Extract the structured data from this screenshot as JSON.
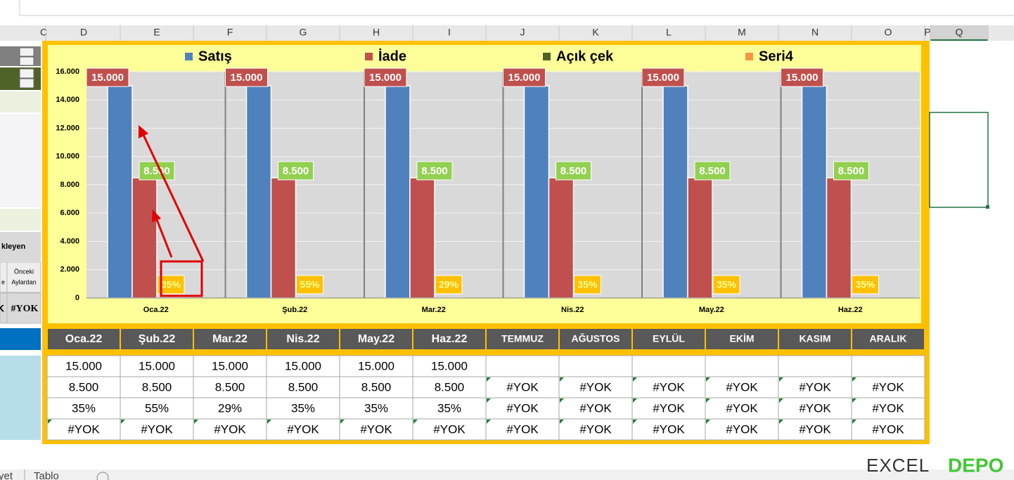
{
  "column_headers": [
    "C",
    "D",
    "E",
    "F",
    "G",
    "H",
    "I",
    "J",
    "K",
    "L",
    "M",
    "N",
    "O",
    "P",
    "Q"
  ],
  "left_panel": {
    "heading": "kleyen",
    "sub_left": "e",
    "sub_right": [
      "Önceki",
      "Aylardan"
    ],
    "value_left": "K",
    "value_right": "#YOK"
  },
  "chart_data": {
    "type": "bar",
    "categories": [
      "Oca.22",
      "Şub.22",
      "Mar.22",
      "Nis.22",
      "May.22",
      "Haz.22"
    ],
    "series": [
      {
        "name": "Satış",
        "color": "#4f81bd",
        "values": [
          15000,
          15000,
          15000,
          15000,
          15000,
          15000
        ],
        "value_labels": [
          "15.000",
          "15.000",
          "15.000",
          "15.000",
          "15.000",
          "15.000"
        ]
      },
      {
        "name": "İade",
        "color": "#c0504d",
        "values": [
          8500,
          8500,
          8500,
          8500,
          8500,
          8500
        ],
        "value_labels": [
          "8.500",
          "8.500",
          "8.500",
          "8.500",
          "8.500",
          "8.500"
        ]
      },
      {
        "name": "Açık çek",
        "color": "#4f6228",
        "values": [
          null,
          null,
          null,
          null,
          null,
          null
        ]
      },
      {
        "name": "Seri4",
        "color": "#f79646",
        "values": [
          0.35,
          0.55,
          0.29,
          0.35,
          0.35,
          0.35
        ],
        "value_labels": [
          "35%",
          "55%",
          "29%",
          "35%",
          "35%",
          "35%"
        ]
      }
    ],
    "ylim": [
      0,
      16000
    ],
    "yticks": [
      0,
      {
        "value": 2000,
        "label": "2.000"
      },
      {
        "value": 4000,
        "label": "4.000"
      },
      {
        "value": 6000,
        "label": "6.000"
      },
      {
        "value": 8000,
        "label": "8.000"
      },
      {
        "value": 10000,
        "label": "10.000"
      },
      {
        "value": 12000,
        "label": "12.000"
      },
      {
        "value": 14000,
        "label": "14.000"
      },
      {
        "value": 16000,
        "label": "16.000"
      }
    ],
    "grid": true,
    "legend": "top"
  },
  "table": {
    "header": [
      "Oca.22",
      "Şub.22",
      "Mar.22",
      "Nis.22",
      "May.22",
      "Haz.22",
      "TEMMUZ",
      "AĞUSTOS",
      "EYLÜL",
      "EKİM",
      "KASIM",
      "ARALIK"
    ],
    "rows": [
      [
        "15.000",
        "15.000",
        "15.000",
        "15.000",
        "15.000",
        "15.000",
        null,
        null,
        null,
        null,
        null,
        null
      ],
      [
        "8.500",
        "8.500",
        "8.500",
        "8.500",
        "8.500",
        "8.500",
        "#YOK",
        "#YOK",
        "#YOK",
        "#YOK",
        "#YOK",
        "#YOK"
      ],
      [
        "35%",
        "55%",
        "29%",
        "35%",
        "35%",
        "35%",
        "#YOK",
        "#YOK",
        "#YOK",
        "#YOK",
        "#YOK",
        "#YOK"
      ],
      [
        "#YOK",
        "#YOK",
        "#YOK",
        "#YOK",
        "#YOK",
        "#YOK",
        "#YOK",
        "#YOK",
        "#YOK",
        "#YOK",
        "#YOK",
        "#YOK"
      ]
    ]
  },
  "sheet_tabs": [
    "yet",
    "Tablo"
  ],
  "watermark": [
    "EXCEL",
    "DEPO"
  ]
}
